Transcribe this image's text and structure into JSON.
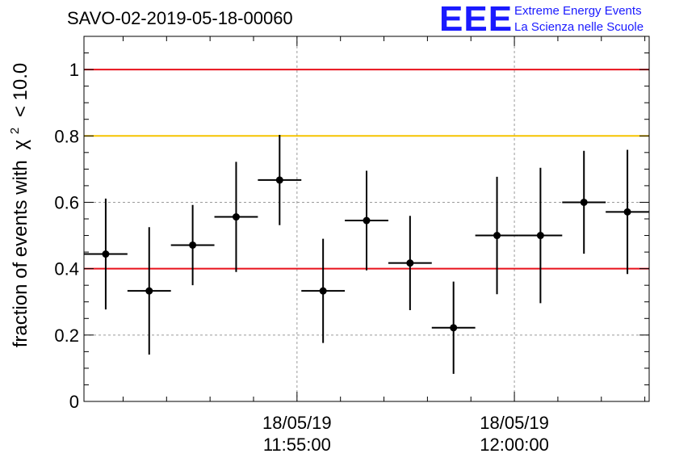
{
  "header": {
    "title": "SAVO-02-2019-05-18-00060",
    "logo_mark": "EEE",
    "logo_line1": "Extreme Energy Events",
    "logo_line2": "La Scienza nelle Scuole"
  },
  "colors": {
    "red_line": "#e8121c",
    "yellow_line": "#f5c400",
    "grid": "#9a9a9a",
    "points": "#000000",
    "logo": "#1a1aff"
  },
  "chart_data": {
    "type": "scatter",
    "title": "SAVO-02-2019-05-18-00060",
    "ylabel_prefix": "fraction of events with",
    "ylabel_symbol": "χ",
    "ylabel_exponent": "2",
    "ylabel_suffix": "< 10.0",
    "xlabel": "",
    "ylim": [
      0,
      1.1
    ],
    "xlim_minutes": [
      -4.9,
      8.1
    ],
    "y_ticks": [
      "0",
      "0.2",
      "0.4",
      "0.6",
      "0.8",
      "1"
    ],
    "x_ticks": [
      {
        "minute": 0,
        "date": "18/05/19",
        "time": "11:55:00"
      },
      {
        "minute": 5,
        "date": "18/05/19",
        "time": "12:00:00"
      }
    ],
    "x_minor_ticks_minutes": [
      -4,
      -3,
      -2,
      -1,
      1,
      2,
      3,
      4,
      6,
      7,
      8
    ],
    "reference_lines": [
      {
        "y": 1.0,
        "color": "red"
      },
      {
        "y": 0.8,
        "color": "yellow"
      },
      {
        "y": 0.4,
        "color": "red"
      }
    ],
    "points": [
      {
        "x": -4.4,
        "y": 0.444,
        "y_err": 0.167
      },
      {
        "x": -3.4,
        "y": 0.333,
        "y_err": 0.192
      },
      {
        "x": -2.4,
        "y": 0.471,
        "y_err": 0.121
      },
      {
        "x": -1.4,
        "y": 0.556,
        "y_err": 0.166
      },
      {
        "x": -0.4,
        "y": 0.667,
        "y_err": 0.136
      },
      {
        "x": 0.6,
        "y": 0.333,
        "y_err": 0.157
      },
      {
        "x": 1.6,
        "y": 0.545,
        "y_err": 0.15
      },
      {
        "x": 2.6,
        "y": 0.417,
        "y_err": 0.142
      },
      {
        "x": 3.6,
        "y": 0.222,
        "y_err": 0.139
      },
      {
        "x": 4.6,
        "y": 0.5,
        "y_err": 0.177
      },
      {
        "x": 5.6,
        "y": 0.5,
        "y_err": 0.204
      },
      {
        "x": 6.6,
        "y": 0.6,
        "y_err": 0.155
      },
      {
        "x": 7.6,
        "y": 0.571,
        "y_err": 0.187
      }
    ],
    "x_err_minutes": 0.5
  }
}
